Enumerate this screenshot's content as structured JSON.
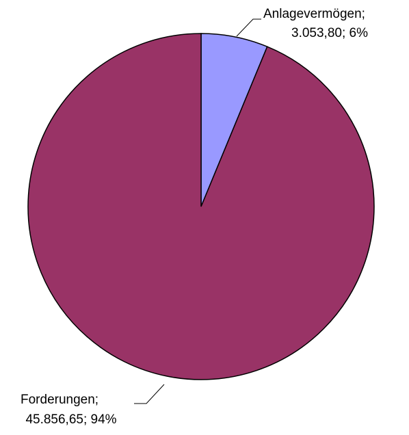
{
  "chart_data": {
    "type": "pie",
    "categories": [
      "Anlagevermögen;",
      "Forderungen;"
    ],
    "values": [
      3053.8,
      45856.65
    ],
    "value_labels": [
      "3.053,80; 6%",
      "45.856,65; 94%"
    ],
    "colors": [
      "#9999ff",
      "#993366"
    ]
  }
}
